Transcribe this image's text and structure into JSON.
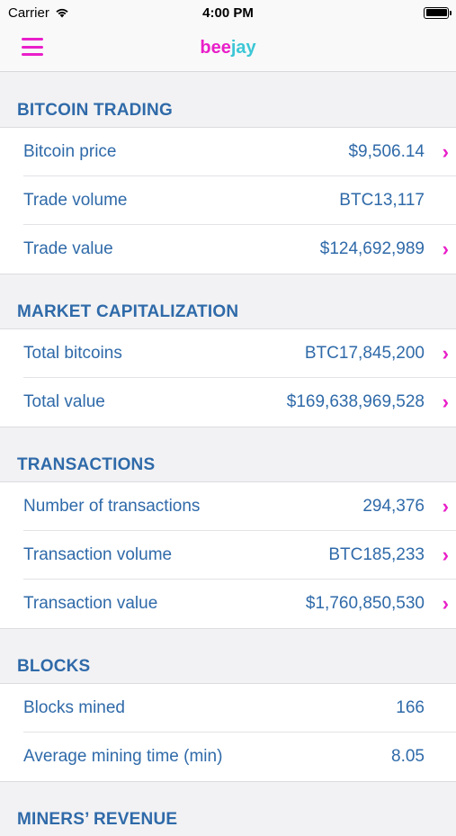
{
  "status_bar": {
    "carrier": "Carrier",
    "time": "4:00 PM"
  },
  "nav": {
    "brand_part1": "bee",
    "brand_part2": "jay",
    "icons": {
      "menu": "hamburger-menu-icon"
    }
  },
  "colors": {
    "accent_pink": "#e91fc9",
    "accent_teal": "#3cc7d6",
    "text_blue": "#2f6aa9"
  },
  "sections": [
    {
      "title": "BITCOIN TRADING",
      "rows": [
        {
          "label": "Bitcoin price",
          "value": "$9,506.14",
          "chevron": true
        },
        {
          "label": "Trade volume",
          "value": "BTC13,117",
          "chevron": false
        },
        {
          "label": "Trade value",
          "value": "$124,692,989",
          "chevron": true
        }
      ]
    },
    {
      "title": "MARKET CAPITALIZATION",
      "rows": [
        {
          "label": "Total bitcoins",
          "value": "BTC17,845,200",
          "chevron": true
        },
        {
          "label": "Total value",
          "value": "$169,638,969,528",
          "chevron": true
        }
      ]
    },
    {
      "title": "TRANSACTIONS",
      "rows": [
        {
          "label": "Number of transactions",
          "value": "294,376",
          "chevron": true
        },
        {
          "label": "Transaction volume",
          "value": "BTC185,233",
          "chevron": true
        },
        {
          "label": "Transaction value",
          "value": "$1,760,850,530",
          "chevron": true
        }
      ]
    },
    {
      "title": "BLOCKS",
      "rows": [
        {
          "label": "Blocks mined",
          "value": "166",
          "chevron": false
        },
        {
          "label": "Average mining time (min)",
          "value": "8.05",
          "chevron": false
        }
      ]
    },
    {
      "title": "MINERS’ REVENUE",
      "rows": []
    }
  ]
}
